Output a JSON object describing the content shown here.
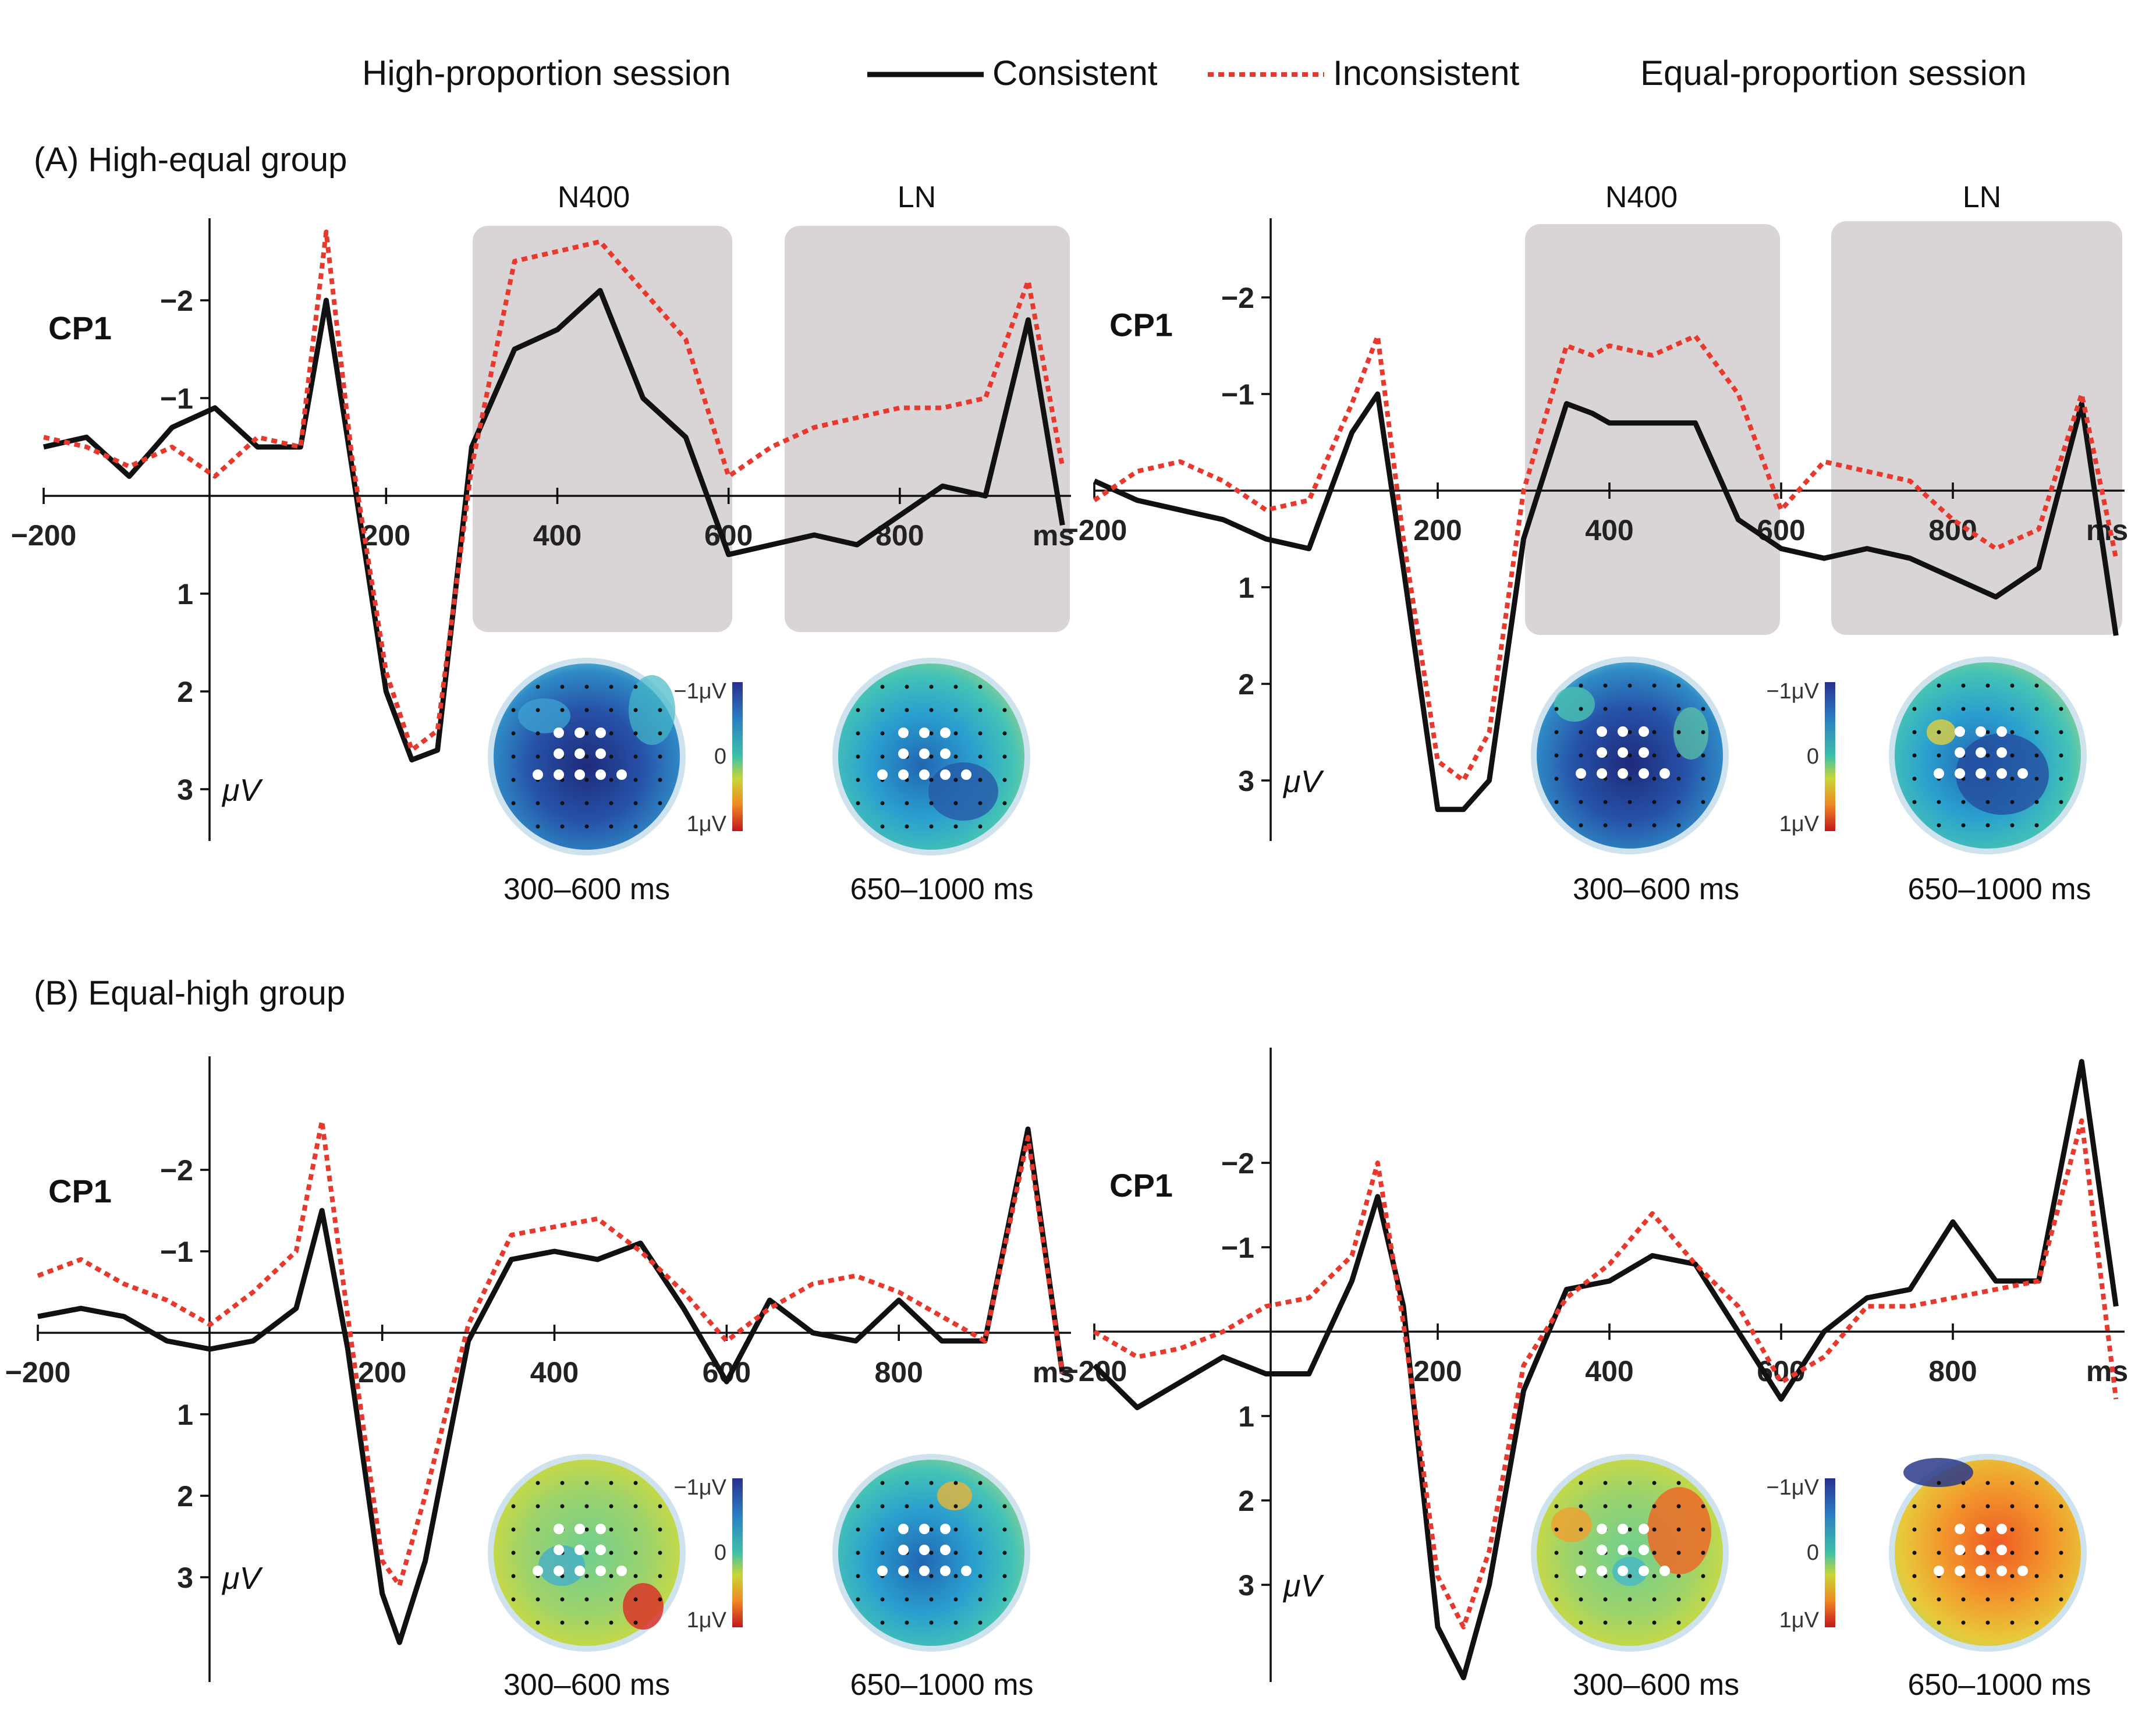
{
  "legend": {
    "left_session": "High-proportion session",
    "consistent": "Consistent",
    "inconsistent": "Inconsistent",
    "right_session": "Equal-proportion session",
    "consistent_color": "#111111",
    "inconsistent_color": "#e8392e"
  },
  "groups": [
    {
      "id": "A",
      "title": "(A) High-equal group"
    },
    {
      "id": "B",
      "title": "(B) Equal-high group"
    }
  ],
  "window_labels": {
    "n400": "N400",
    "ln": "LN"
  },
  "axis": {
    "channel": "CP1",
    "unit": "μV",
    "x_unit": "ms",
    "x_ticks": [
      "−200",
      "200",
      "400",
      "600",
      "800"
    ],
    "y_ticks": [
      "−2",
      "−1",
      "1",
      "2",
      "3"
    ]
  },
  "colorbar": {
    "top": "−1μV",
    "mid": "0",
    "bottom": "1μV"
  },
  "topo_windows": [
    "300–600 ms",
    "650–1000 ms"
  ],
  "chart_data": [
    {
      "type": "line",
      "group": "A",
      "session": "High-proportion session",
      "xlim": [
        -200,
        1000
      ],
      "ylim": [
        -2.7,
        3.5
      ],
      "y_inverted": true,
      "shaded_windows": [
        [
          300,
          600
        ],
        [
          650,
          1000
        ]
      ],
      "x": [
        -200,
        -150,
        -100,
        -50,
        0,
        50,
        100,
        130,
        160,
        200,
        230,
        260,
        300,
        350,
        400,
        450,
        500,
        550,
        600,
        650,
        700,
        750,
        800,
        850,
        900,
        950,
        990
      ],
      "series": [
        {
          "name": "Consistent",
          "values": [
            -0.5,
            -0.6,
            -0.2,
            -0.7,
            -0.9,
            -0.5,
            -0.5,
            -2.0,
            -0.3,
            2.0,
            2.7,
            2.6,
            -0.5,
            -1.5,
            -1.7,
            -2.1,
            -1.0,
            -0.6,
            0.6,
            0.5,
            0.4,
            0.5,
            0.2,
            -0.1,
            0.0,
            -1.8,
            0.3
          ]
        },
        {
          "name": "Inconsistent",
          "values": [
            -0.6,
            -0.5,
            -0.3,
            -0.5,
            -0.2,
            -0.6,
            -0.5,
            -2.7,
            -0.4,
            1.8,
            2.6,
            2.4,
            -0.3,
            -2.4,
            -2.5,
            -2.6,
            -2.1,
            -1.6,
            -0.2,
            -0.5,
            -0.7,
            -0.8,
            -0.9,
            -0.9,
            -1.0,
            -2.2,
            -0.3
          ]
        }
      ]
    },
    {
      "type": "line",
      "group": "A",
      "session": "Equal-proportion session",
      "xlim": [
        -200,
        1000
      ],
      "ylim": [
        -2.7,
        3.5
      ],
      "y_inverted": true,
      "shaded_windows": [
        [
          300,
          600
        ],
        [
          650,
          1000
        ]
      ],
      "x": [
        -200,
        -150,
        -100,
        -50,
        0,
        50,
        100,
        130,
        160,
        200,
        230,
        260,
        300,
        350,
        380,
        400,
        450,
        500,
        550,
        600,
        650,
        700,
        750,
        800,
        850,
        900,
        950,
        990
      ],
      "series": [
        {
          "name": "Consistent",
          "values": [
            -0.1,
            0.1,
            0.2,
            0.3,
            0.5,
            0.6,
            -0.6,
            -1.0,
            0.8,
            3.3,
            3.3,
            3.0,
            0.5,
            -0.9,
            -0.8,
            -0.7,
            -0.7,
            -0.7,
            0.3,
            0.6,
            0.7,
            0.6,
            0.7,
            0.9,
            1.1,
            0.8,
            -0.9,
            1.5
          ]
        },
        {
          "name": "Inconsistent",
          "values": [
            0.1,
            -0.2,
            -0.3,
            -0.1,
            0.2,
            0.1,
            -0.9,
            -1.6,
            0.5,
            2.8,
            3.0,
            2.5,
            0.0,
            -1.5,
            -1.4,
            -1.5,
            -1.4,
            -1.6,
            -1.0,
            0.2,
            -0.3,
            -0.2,
            -0.1,
            0.3,
            0.6,
            0.4,
            -1.0,
            0.7
          ]
        }
      ]
    },
    {
      "type": "line",
      "group": "B",
      "session": "High-proportion session",
      "xlim": [
        -200,
        1000
      ],
      "ylim": [
        -3.3,
        4.0
      ],
      "y_inverted": true,
      "x": [
        -200,
        -150,
        -100,
        -50,
        0,
        50,
        100,
        130,
        160,
        200,
        220,
        250,
        300,
        350,
        400,
        450,
        500,
        550,
        600,
        650,
        700,
        750,
        800,
        850,
        900,
        950,
        990
      ],
      "series": [
        {
          "name": "Consistent",
          "values": [
            -0.2,
            -0.3,
            -0.2,
            0.1,
            0.2,
            0.1,
            -0.3,
            -1.5,
            0.2,
            3.2,
            3.8,
            2.8,
            0.1,
            -0.9,
            -1.0,
            -0.9,
            -1.1,
            -0.3,
            0.6,
            -0.4,
            0.0,
            0.1,
            -0.4,
            0.1,
            0.1,
            -2.5,
            0.5
          ]
        },
        {
          "name": "Inconsistent",
          "values": [
            -0.7,
            -0.9,
            -0.6,
            -0.4,
            -0.1,
            -0.5,
            -1.0,
            -2.6,
            -0.2,
            2.8,
            3.1,
            2.0,
            -0.1,
            -1.2,
            -1.3,
            -1.4,
            -1.0,
            -0.5,
            0.1,
            -0.3,
            -0.6,
            -0.7,
            -0.5,
            -0.2,
            0.1,
            -2.4,
            0.5
          ]
        }
      ]
    },
    {
      "type": "line",
      "group": "B",
      "session": "Equal-proportion session",
      "xlim": [
        -200,
        1000
      ],
      "ylim": [
        -3.3,
        4.0
      ],
      "y_inverted": true,
      "x": [
        -200,
        -150,
        -100,
        -50,
        0,
        50,
        100,
        130,
        160,
        200,
        230,
        260,
        300,
        350,
        400,
        450,
        500,
        550,
        600,
        650,
        700,
        750,
        800,
        850,
        900,
        950,
        990
      ],
      "series": [
        {
          "name": "Consistent",
          "values": [
            0.4,
            0.9,
            0.6,
            0.3,
            0.5,
            0.5,
            -0.6,
            -1.6,
            -0.3,
            3.5,
            4.1,
            3.0,
            0.7,
            -0.5,
            -0.6,
            -0.9,
            -0.8,
            0.0,
            0.8,
            0.0,
            -0.4,
            -0.5,
            -1.3,
            -0.6,
            -0.6,
            -3.2,
            -0.3
          ]
        },
        {
          "name": "Inconsistent",
          "values": [
            0.0,
            0.3,
            0.2,
            0.0,
            -0.3,
            -0.4,
            -0.9,
            -2.0,
            -0.1,
            2.9,
            3.5,
            2.6,
            0.4,
            -0.4,
            -0.8,
            -1.4,
            -0.8,
            -0.3,
            0.6,
            0.3,
            -0.3,
            -0.3,
            -0.4,
            -0.5,
            -0.6,
            -2.5,
            0.8
          ]
        }
      ]
    }
  ]
}
